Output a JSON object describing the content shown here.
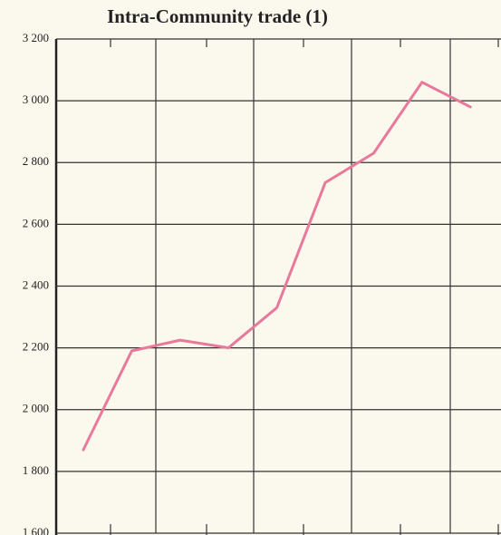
{
  "chart_data": {
    "type": "line",
    "title": "Intra-Community trade (1)",
    "categories": [
      null,
      null,
      null,
      null,
      null,
      null,
      null,
      null,
      null
    ],
    "series": [
      {
        "name": null,
        "color": "#e8799a",
        "values": [
          1870,
          2190,
          2225,
          2200,
          2330,
          2735,
          2830,
          3060,
          2980
        ]
      }
    ],
    "ylim": [
      1600,
      3200
    ],
    "yticks": [
      {
        "value": 1600,
        "label": "1 600"
      },
      {
        "value": 1800,
        "label": "1 800"
      },
      {
        "value": 2000,
        "label": "2 000"
      },
      {
        "value": 2200,
        "label": "2 200"
      },
      {
        "value": 2400,
        "label": "2 400"
      },
      {
        "value": 2600,
        "label": "2 600"
      },
      {
        "value": 2800,
        "label": "2 800"
      },
      {
        "value": 3000,
        "label": "3 000"
      },
      {
        "value": 3200,
        "label": "3 200"
      }
    ],
    "grid": true
  }
}
